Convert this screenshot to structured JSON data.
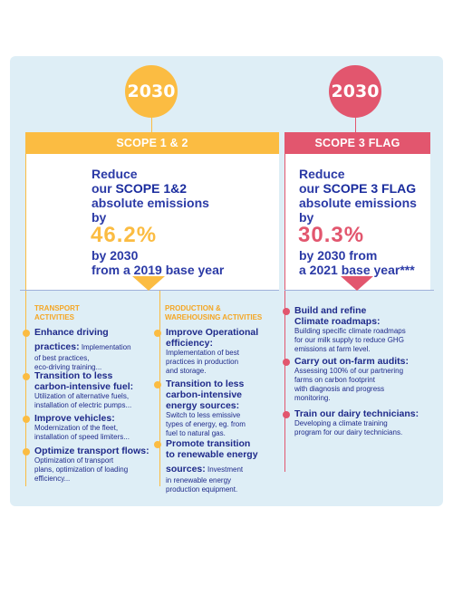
{
  "left": {
    "year": "2030",
    "header": "SCOPE 1 & 2",
    "goal_line1": "Reduce",
    "goal_line2a": "our ",
    "goal_line2b": "SCOPE 1&2",
    "goal_line3": "absolute emissions",
    "goal_line4": "by",
    "percent": "46.2%",
    "after_line1": "by 2030",
    "after_line2": "from a 2019 base year",
    "columns": [
      {
        "heading": [
          "TRANSPORT",
          "ACTIVITIES"
        ],
        "items": [
          {
            "title_lines": [
              "Enhance driving"
            ],
            "title_inline": "practices:",
            "desc_inline": " Implementation",
            "desc_lines": [
              "of best practices,",
              "eco-driving training..."
            ]
          },
          {
            "title_lines": [
              "Transition to less",
              "carbon-intensive fuel:"
            ],
            "desc_lines": [
              "Utilization of alternative fuels,",
              "installation of electric pumps..."
            ]
          },
          {
            "title_lines": [
              "Improve vehicles:"
            ],
            "desc_lines": [
              "Modernization of the fleet,",
              "installation of speed limiters..."
            ]
          },
          {
            "title_lines": [
              "Optimize transport flows:"
            ],
            "desc_lines": [
              "Optimization of transport",
              "plans, optimization of loading",
              "efficiency..."
            ]
          }
        ]
      },
      {
        "heading": [
          "PRODUCTION &",
          "WAREHOUSING ACTIVITIES"
        ],
        "items": [
          {
            "title_lines": [
              "Improve Operational",
              "efficiency:"
            ],
            "desc_lines": [
              "Implementation of best",
              "practices in production",
              "and storage."
            ]
          },
          {
            "title_lines": [
              "Transition to less",
              "carbon-intensive",
              "energy sources:"
            ],
            "desc_lines": [
              "Switch to less emissive",
              "types of energy, eg. from",
              "fuel to natural gas."
            ]
          },
          {
            "title_lines": [
              "Promote transition",
              "to renewable energy"
            ],
            "title_inline": "sources:",
            "desc_inline": " Investment",
            "desc_lines": [
              "in renewable energy",
              "production equipment."
            ]
          }
        ]
      }
    ]
  },
  "right": {
    "year": "2030",
    "header": "SCOPE 3 FLAG",
    "goal_line1": "Reduce",
    "goal_line2a": "our ",
    "goal_line2b": "SCOPE 3 FLAG",
    "goal_line3": "absolute emissions",
    "goal_line4": "by",
    "percent": "30.3%",
    "after_line1": "by 2030 from",
    "after_line2": "a 2021 base year***",
    "items": [
      {
        "title_lines": [
          "Build and refine",
          "Climate roadmaps:"
        ],
        "desc_lines": [
          "Building specific climate roadmaps",
          "for our milk supply to reduce GHG",
          "emissions at farm level."
        ]
      },
      {
        "title_lines": [
          "Carry out on-farm audits:"
        ],
        "desc_lines": [
          "Assessing 100% of our partnering",
          "farms on carbon footprint",
          "with diagnosis and progress",
          "monitoring."
        ]
      },
      {
        "title_lines": [
          "Train our dairy technicians:"
        ],
        "desc_lines": [
          "Developing a climate training",
          "program for our dairy technicians."
        ]
      }
    ]
  }
}
